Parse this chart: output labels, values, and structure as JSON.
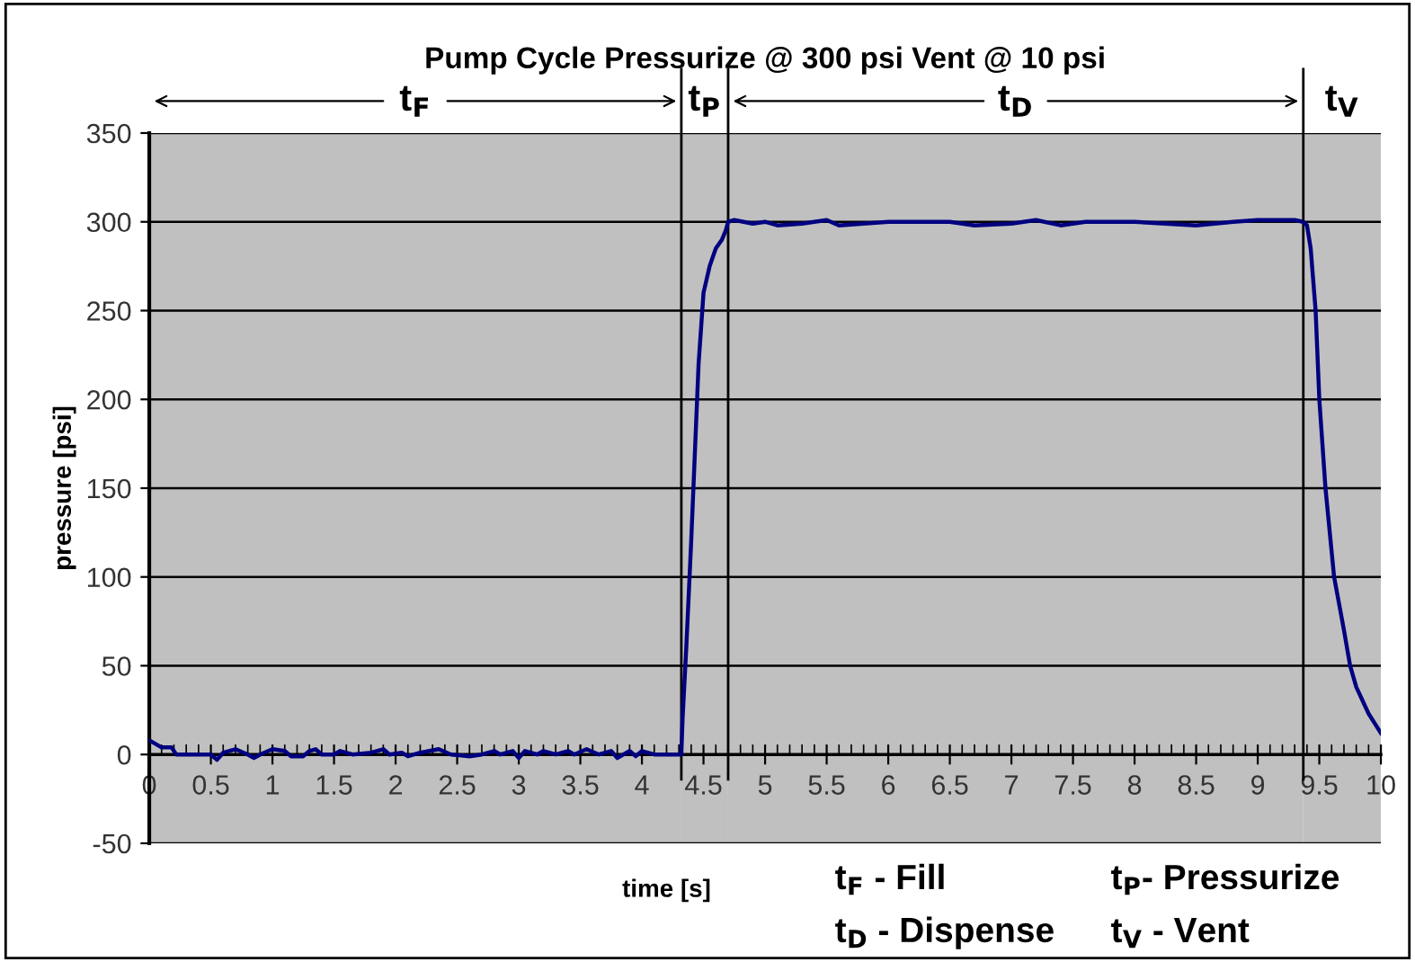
{
  "chart_data": {
    "type": "line",
    "title": "Pump Cycle Pressurize @ 300 psi Vent @ 10 psi",
    "xlabel": "time [s]",
    "ylabel": "pressure [psi]",
    "series": [
      {
        "color": "#000080",
        "x": [
          0,
          0.05,
          0.1,
          0.18,
          0.22,
          0.5,
          0.55,
          0.6,
          0.7,
          0.8,
          0.85,
          0.9,
          1.0,
          1.1,
          1.15,
          1.25,
          1.3,
          1.35,
          1.4,
          1.5,
          1.55,
          1.65,
          1.8,
          1.9,
          1.95,
          2.05,
          2.1,
          2.2,
          2.35,
          2.45,
          2.6,
          2.7,
          2.8,
          2.85,
          2.95,
          3.0,
          3.05,
          3.15,
          3.2,
          3.3,
          3.4,
          3.45,
          3.55,
          3.65,
          3.75,
          3.8,
          3.9,
          3.95,
          4.0,
          4.1,
          4.3,
          4.32,
          4.33,
          4.36,
          4.4,
          4.43,
          4.46,
          4.5,
          4.55,
          4.6,
          4.65,
          4.68,
          4.7,
          4.75,
          4.9,
          5.0,
          5.1,
          5.3,
          5.5,
          5.6,
          6.0,
          6.5,
          6.7,
          7.0,
          7.2,
          7.4,
          7.6,
          8.0,
          8.5,
          8.8,
          9.0,
          9.3,
          9.37,
          9.4,
          9.43,
          9.47,
          9.5,
          9.55,
          9.62,
          9.7,
          9.75,
          9.8,
          9.9,
          10
        ],
        "values": [
          8,
          6,
          4,
          4,
          0,
          0,
          -3,
          1,
          3,
          0,
          -2,
          0,
          3,
          2,
          -1,
          -1,
          2,
          3,
          0,
          0,
          2,
          0,
          1,
          3,
          0,
          1,
          -1,
          1,
          3,
          0,
          -1,
          0,
          2,
          0,
          2,
          -2,
          2,
          0,
          2,
          0,
          2,
          0,
          3,
          0,
          2,
          -2,
          2,
          -1,
          2,
          0,
          0,
          0,
          20,
          60,
          120,
          170,
          220,
          260,
          275,
          285,
          290,
          295,
          300,
          301,
          299,
          300,
          298,
          299,
          301,
          298,
          300,
          300,
          298,
          299,
          301,
          298,
          300,
          300,
          298,
          300,
          301,
          301,
          300,
          298,
          285,
          250,
          200,
          150,
          100,
          70,
          50,
          38,
          23,
          12
        ]
      }
    ],
    "xlim": [
      0,
      10
    ],
    "ylim": [
      -50,
      350
    ],
    "xticks": [
      0,
      0.5,
      1,
      1.5,
      2,
      2.5,
      3,
      3.5,
      4,
      4.5,
      5,
      5.5,
      6,
      6.5,
      7,
      7.5,
      8,
      8.5,
      9,
      9.5,
      10
    ],
    "yticks": [
      -50,
      0,
      50,
      100,
      150,
      200,
      250,
      300,
      350
    ],
    "grid": "y",
    "marker": "none",
    "line_style": "solid",
    "ref_lines": [
      {
        "axis": "x",
        "value": 4.32,
        "color": "#000000"
      },
      {
        "axis": "x",
        "value": 4.7,
        "color": "#000000"
      },
      {
        "axis": "x",
        "value": 9.37,
        "color": "#000000"
      }
    ],
    "bands": [
      {
        "axis": "x",
        "from": 0,
        "to": 4.32,
        "label": "t$_{F}$",
        "color": "#c0c0c0"
      },
      {
        "axis": "x",
        "from": 4.32,
        "to": 4.7,
        "label": "t$_{P}$",
        "color": "#c0c0c0"
      },
      {
        "axis": "x",
        "from": 4.7,
        "to": 9.37,
        "label": "t$_{D}$",
        "color": "#c0c0c0"
      },
      {
        "axis": "x",
        "from": 9.37,
        "to": 10,
        "label": "t$_{V}$",
        "color": "#c0c0c0"
      }
    ],
    "annotations": [
      "t$_{F}$ - Fill",
      "t$_{P}$- Pressurize",
      "t$_{D}$ - Dispense",
      "t$_{V}$ - Vent"
    ]
  }
}
